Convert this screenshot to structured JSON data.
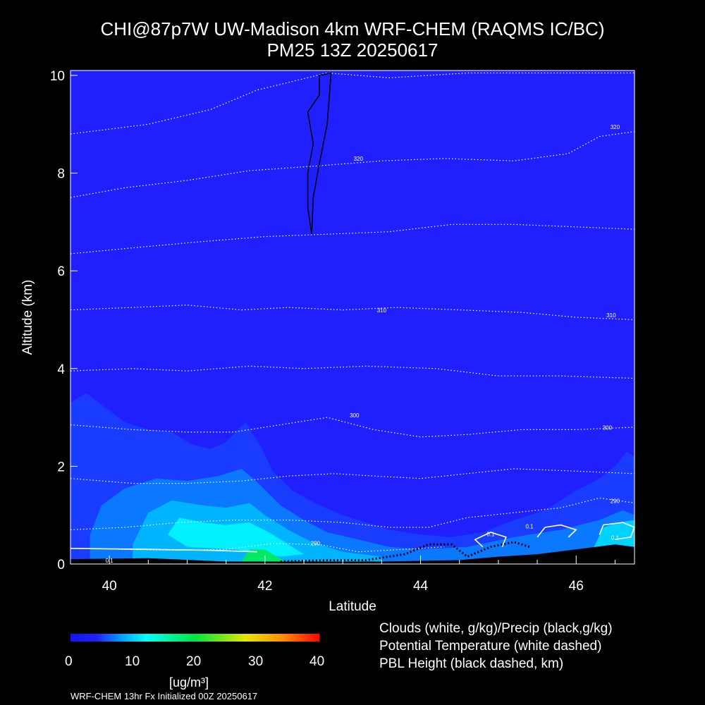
{
  "title_line1": "CHI@87p7W UW-Madison 4km WRF-CHEM (RAQMS IC/BC)",
  "title_line2": "PM25 13Z 20250617",
  "legend": {
    "line1": "Clouds (white, g/kg)/Precip (black,g/kg)",
    "line2": "Potential Temperature (white dashed)",
    "line3": "PBL Height (black dashed, km)"
  },
  "colorbar": {
    "ticks": [
      "0",
      "10",
      "20",
      "30",
      "40"
    ],
    "units": "[ug/m³]"
  },
  "footer": "WRF-CHEM 13hr  Fx Initialized 00Z 20250617",
  "colors": {
    "background": "#000000",
    "field_base": "#2020ff"
  },
  "chart_data": {
    "type": "heatmap",
    "xlabel": "Latitude",
    "ylabel": "Altitude (km)",
    "xlim": [
      39.5,
      46.75
    ],
    "ylim": [
      0,
      10.1
    ],
    "x_ticks": [
      40,
      42,
      44,
      46
    ],
    "y_ticks": [
      0,
      2,
      4,
      6,
      8,
      10
    ],
    "grid": false,
    "isentrope_labels": [
      {
        "text": "320",
        "x": 43.2,
        "y": 8.25
      },
      {
        "text": "320",
        "x": 46.5,
        "y": 8.9
      },
      {
        "text": "310",
        "x": 43.5,
        "y": 5.15
      },
      {
        "text": "310",
        "x": 46.45,
        "y": 5.05
      },
      {
        "text": "300",
        "x": 43.15,
        "y": 3.0
      },
      {
        "text": "300",
        "x": 46.4,
        "y": 2.75
      },
      {
        "text": "290",
        "x": 42.65,
        "y": 0.38
      },
      {
        "text": "290",
        "x": 46.5,
        "y": 1.25
      },
      {
        "text": "0.1",
        "x": 40.0,
        "y": 0.03
      },
      {
        "text": "0.1",
        "x": 44.9,
        "y": 0.57
      },
      {
        "text": "0.1",
        "x": 45.4,
        "y": 0.73
      },
      {
        "text": "0.1",
        "x": 46.5,
        "y": 0.5
      }
    ],
    "isentropes": [
      [
        [
          39.5,
          8.8
        ],
        [
          40.5,
          9.0
        ],
        [
          41.3,
          9.3
        ],
        [
          41.9,
          9.7
        ],
        [
          42.8,
          10.05
        ],
        [
          43.6,
          9.95
        ],
        [
          44.6,
          10.05
        ],
        [
          45.6,
          10.05
        ],
        [
          46.75,
          10.05
        ]
      ],
      [
        [
          39.5,
          7.5
        ],
        [
          40.2,
          7.7
        ],
        [
          41.0,
          7.85
        ],
        [
          41.8,
          8.05
        ],
        [
          42.7,
          8.15
        ],
        [
          43.5,
          8.25
        ],
        [
          44.3,
          8.3
        ],
        [
          45.2,
          8.25
        ],
        [
          45.9,
          8.4
        ],
        [
          46.3,
          8.75
        ],
        [
          46.75,
          8.85
        ]
      ],
      [
        [
          39.5,
          6.35
        ],
        [
          40.5,
          6.5
        ],
        [
          41.2,
          6.6
        ],
        [
          42.0,
          6.7
        ],
        [
          42.8,
          6.75
        ],
        [
          43.6,
          6.8
        ],
        [
          44.4,
          6.95
        ],
        [
          45.2,
          6.95
        ],
        [
          46.0,
          6.9
        ],
        [
          46.75,
          6.85
        ]
      ],
      [
        [
          39.5,
          5.2
        ],
        [
          40.3,
          5.25
        ],
        [
          41.0,
          5.3
        ],
        [
          41.7,
          5.2
        ],
        [
          42.3,
          5.25
        ],
        [
          43.0,
          5.2
        ],
        [
          43.7,
          5.25
        ],
        [
          44.5,
          5.2
        ],
        [
          45.3,
          5.15
        ],
        [
          46.0,
          5.05
        ],
        [
          46.75,
          5.0
        ]
      ],
      [
        [
          39.5,
          3.95
        ],
        [
          40.3,
          4.0
        ],
        [
          41.0,
          3.95
        ],
        [
          41.8,
          4.05
        ],
        [
          42.5,
          4.0
        ],
        [
          43.3,
          4.05
        ],
        [
          44.2,
          4.0
        ],
        [
          45.0,
          3.85
        ],
        [
          45.8,
          3.85
        ],
        [
          46.75,
          3.8
        ]
      ],
      [
        [
          39.5,
          2.85
        ],
        [
          40.3,
          2.75
        ],
        [
          41.0,
          2.7
        ],
        [
          41.6,
          2.7
        ],
        [
          42.2,
          2.85
        ],
        [
          42.8,
          3.0
        ],
        [
          43.4,
          2.75
        ],
        [
          44.0,
          2.6
        ],
        [
          44.6,
          2.65
        ],
        [
          45.3,
          2.75
        ],
        [
          46.0,
          2.75
        ],
        [
          46.75,
          2.8
        ]
      ],
      [
        [
          39.5,
          1.75
        ],
        [
          40.3,
          1.65
        ],
        [
          41.0,
          1.65
        ],
        [
          41.7,
          1.7
        ],
        [
          42.3,
          1.8
        ],
        [
          42.9,
          1.85
        ],
        [
          43.4,
          1.8
        ],
        [
          44.0,
          1.75
        ],
        [
          44.6,
          1.85
        ],
        [
          45.2,
          1.95
        ],
        [
          46.0,
          1.9
        ],
        [
          46.75,
          1.85
        ]
      ],
      [
        [
          39.5,
          0.7
        ],
        [
          40.2,
          0.75
        ],
        [
          40.9,
          0.85
        ],
        [
          41.6,
          0.9
        ],
        [
          42.3,
          0.9
        ],
        [
          43.0,
          0.85
        ],
        [
          43.6,
          0.75
        ],
        [
          44.1,
          0.75
        ],
        [
          44.6,
          0.95
        ],
        [
          45.2,
          1.05
        ],
        [
          45.8,
          1.15
        ],
        [
          46.3,
          1.35
        ],
        [
          46.75,
          1.25
        ]
      ],
      [
        [
          39.5,
          0.32
        ],
        [
          40.2,
          0.3
        ],
        [
          40.9,
          0.28
        ],
        [
          41.5,
          0.3
        ],
        [
          42.1,
          0.42
        ],
        [
          42.7,
          0.4
        ],
        [
          43.2,
          0.25
        ],
        [
          43.8,
          0.3
        ],
        [
          44.3,
          0.35
        ]
      ]
    ],
    "pm25_layers": [
      {
        "level": 3,
        "points": [
          [
            39.5,
            0.0
          ],
          [
            39.5,
            3.3
          ],
          [
            39.7,
            3.5
          ],
          [
            39.95,
            3.2
          ],
          [
            40.2,
            2.9
          ],
          [
            40.5,
            2.75
          ],
          [
            40.8,
            2.7
          ],
          [
            41.05,
            2.45
          ],
          [
            41.3,
            2.35
          ],
          [
            41.5,
            2.5
          ],
          [
            41.75,
            2.9
          ],
          [
            41.95,
            2.4
          ],
          [
            42.1,
            1.9
          ],
          [
            42.35,
            1.5
          ],
          [
            42.7,
            1.2
          ],
          [
            43.0,
            1.0
          ],
          [
            43.3,
            0.85
          ],
          [
            43.6,
            0.7
          ],
          [
            44.0,
            0.6
          ],
          [
            44.4,
            0.55
          ],
          [
            44.8,
            0.65
          ],
          [
            45.2,
            0.9
          ],
          [
            45.6,
            1.1
          ],
          [
            46.0,
            1.5
          ],
          [
            46.3,
            1.75
          ],
          [
            46.5,
            2.0
          ],
          [
            46.65,
            2.3
          ],
          [
            46.75,
            2.2
          ],
          [
            46.75,
            0.0
          ]
        ]
      },
      {
        "level": 6,
        "points": [
          [
            39.75,
            0.6
          ],
          [
            39.9,
            1.2
          ],
          [
            40.2,
            1.55
          ],
          [
            40.6,
            1.75
          ],
          [
            41.0,
            1.7
          ],
          [
            41.4,
            1.8
          ],
          [
            41.7,
            1.95
          ],
          [
            41.95,
            1.6
          ],
          [
            42.2,
            1.2
          ],
          [
            42.5,
            0.9
          ],
          [
            42.8,
            0.65
          ],
          [
            43.2,
            0.5
          ],
          [
            43.6,
            0.35
          ],
          [
            44.0,
            0.3
          ],
          [
            44.6,
            0.35
          ],
          [
            45.2,
            0.55
          ],
          [
            45.8,
            0.7
          ],
          [
            46.3,
            0.9
          ],
          [
            46.6,
            1.1
          ],
          [
            46.75,
            1.0
          ],
          [
            46.75,
            0.0
          ],
          [
            39.75,
            0.0
          ]
        ]
      },
      {
        "level": 10,
        "points": [
          [
            40.3,
            0.4
          ],
          [
            40.5,
            1.05
          ],
          [
            40.8,
            1.3
          ],
          [
            41.2,
            1.2
          ],
          [
            41.5,
            1.15
          ],
          [
            41.8,
            1.25
          ],
          [
            42.0,
            1.0
          ],
          [
            42.3,
            0.7
          ],
          [
            42.6,
            0.45
          ],
          [
            43.0,
            0.25
          ],
          [
            43.5,
            0.15
          ],
          [
            43.5,
            0.0
          ],
          [
            40.3,
            0.0
          ]
        ]
      },
      {
        "level": 15,
        "points": [
          [
            40.75,
            0.6
          ],
          [
            40.9,
            0.95
          ],
          [
            41.2,
            0.85
          ],
          [
            41.5,
            0.8
          ],
          [
            41.8,
            0.85
          ],
          [
            42.05,
            0.65
          ],
          [
            42.3,
            0.4
          ],
          [
            42.5,
            0.2
          ],
          [
            42.2,
            0.15
          ],
          [
            41.6,
            0.3
          ],
          [
            41.0,
            0.35
          ]
        ]
      },
      {
        "level": 13,
        "points": [
          [
            46.2,
            0.25
          ],
          [
            46.35,
            0.75
          ],
          [
            46.55,
            0.85
          ],
          [
            46.75,
            0.9
          ],
          [
            46.75,
            0.2
          ]
        ]
      },
      {
        "level": 22,
        "points": [
          [
            41.7,
            0.05
          ],
          [
            41.8,
            0.3
          ],
          [
            42.0,
            0.3
          ],
          [
            42.15,
            0.15
          ],
          [
            42.3,
            0.02
          ]
        ]
      }
    ],
    "terrain": [
      [
        39.5,
        0.1
      ],
      [
        40.5,
        0.12
      ],
      [
        41.5,
        0.05
      ],
      [
        42.5,
        0.05
      ],
      [
        43.5,
        0.05
      ],
      [
        44.5,
        0.08
      ],
      [
        45.0,
        0.15
      ],
      [
        45.5,
        0.2
      ],
      [
        46.0,
        0.3
      ],
      [
        46.5,
        0.4
      ],
      [
        46.75,
        0.35
      ]
    ],
    "precip_contour": [
      [
        42.6,
        6.75
      ],
      [
        42.55,
        7.3
      ],
      [
        42.55,
        8.0
      ],
      [
        42.62,
        8.6
      ],
      [
        42.55,
        9.25
      ],
      [
        42.7,
        9.6
      ],
      [
        42.7,
        10.0
      ],
      [
        42.85,
        10.05
      ],
      [
        42.8,
        9.0
      ],
      [
        42.7,
        8.2
      ],
      [
        42.62,
        7.5
      ],
      [
        42.6,
        6.75
      ]
    ],
    "cloud_contours": [
      [
        [
          44.8,
          0.35
        ],
        [
          44.7,
          0.5
        ],
        [
          44.9,
          0.65
        ],
        [
          45.1,
          0.55
        ],
        [
          45.05,
          0.35
        ]
      ],
      [
        [
          45.5,
          0.55
        ],
        [
          45.6,
          0.75
        ],
        [
          45.8,
          0.8
        ],
        [
          46.0,
          0.7
        ],
        [
          45.9,
          0.55
        ]
      ],
      [
        [
          46.3,
          0.6
        ],
        [
          46.35,
          0.8
        ],
        [
          46.6,
          0.85
        ],
        [
          46.75,
          0.75
        ],
        [
          46.7,
          0.55
        ],
        [
          46.5,
          0.5
        ]
      ],
      [
        [
          39.5,
          0.32
        ],
        [
          40.5,
          0.3
        ],
        [
          41.3,
          0.28
        ],
        [
          41.9,
          0.25
        ]
      ]
    ],
    "pbl_height": [
      [
        42.2,
        0.05
      ],
      [
        42.8,
        0.08
      ],
      [
        43.3,
        0.08
      ],
      [
        43.8,
        0.2
      ],
      [
        44.1,
        0.4
      ],
      [
        44.4,
        0.4
      ],
      [
        44.6,
        0.15
      ],
      [
        44.9,
        0.35
      ],
      [
        45.2,
        0.45
      ],
      [
        45.4,
        0.35
      ]
    ]
  }
}
